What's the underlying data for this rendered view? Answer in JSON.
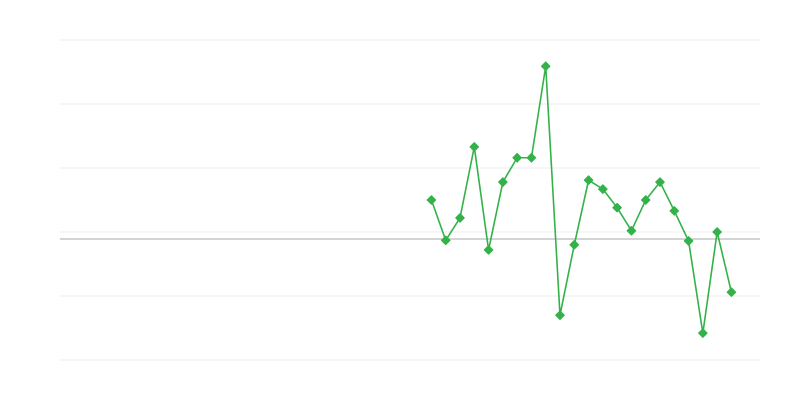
{
  "chart_data": {
    "type": "line",
    "title": "",
    "xlabel": "",
    "ylabel": "",
    "xlim": [
      0,
      49
    ],
    "ylim": [
      -2,
      3
    ],
    "grid": true,
    "y_gridlines": [
      -2,
      -1,
      0,
      1,
      2,
      3
    ],
    "reference_line": -0.11,
    "marker": "diamond",
    "colors": {
      "series": "#33b249",
      "grid": "#ececec",
      "reference": "#aaaaaa"
    },
    "x": [
      26,
      27,
      28,
      29,
      30,
      31,
      32,
      33,
      34,
      35,
      36,
      37,
      38,
      39,
      40,
      41,
      42,
      43,
      44,
      45,
      46,
      47
    ],
    "series": [
      {
        "values": [
          0.5,
          -0.13,
          0.22,
          1.33,
          -0.28,
          0.78,
          1.16,
          1.16,
          2.59,
          -1.3,
          -0.2,
          0.81,
          0.67,
          0.38,
          0.02,
          0.5,
          0.78,
          0.33,
          -0.14,
          -1.58,
          0.0,
          -0.94
        ]
      }
    ]
  }
}
